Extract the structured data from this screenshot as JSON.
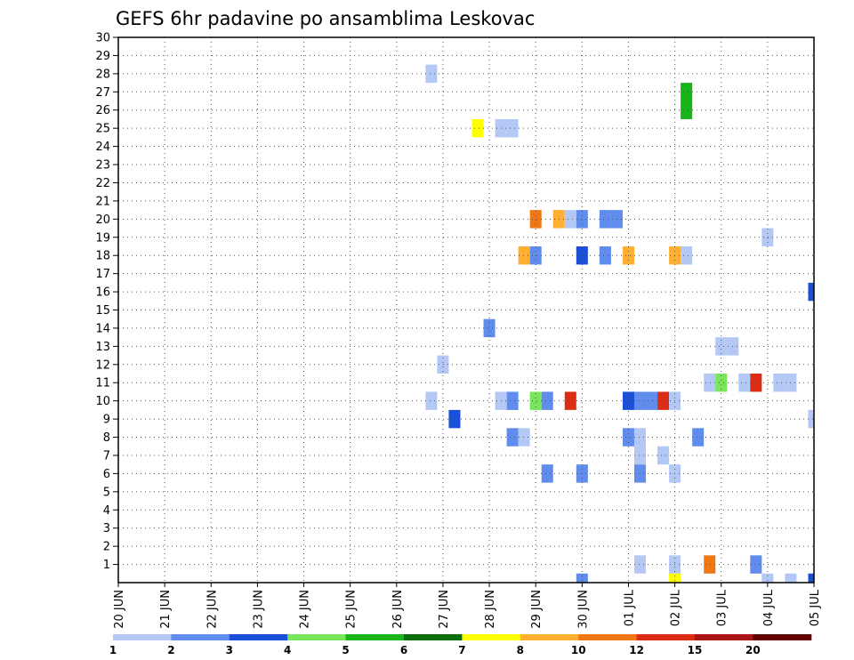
{
  "chart_data": {
    "type": "heatmap",
    "title": "GEFS 6hr padavine po ansamblima Leskovac",
    "x_tick_labels": [
      "20 JUN",
      "21 JUN",
      "22 JUN",
      "23 JUN",
      "24 JUN",
      "25 JUN",
      "26 JUN",
      "27 JUN",
      "28 JUN",
      "29 JUN",
      "30 JUN",
      "01 JUL",
      "02 JUL",
      "03 JUL",
      "04 JUL",
      "05 JUL"
    ],
    "y_tick_labels": [
      "1",
      "2",
      "3",
      "4",
      "5",
      "6",
      "7",
      "8",
      "9",
      "10",
      "11",
      "12",
      "13",
      "14",
      "15",
      "16",
      "17",
      "18",
      "19",
      "20",
      "21",
      "22",
      "23",
      "24",
      "25",
      "26",
      "27",
      "28",
      "29",
      "30"
    ],
    "xlim": [
      "20 JUN 00Z",
      "05 JUL 00Z"
    ],
    "ylim": [
      0,
      30
    ],
    "grid": true,
    "x_unit": "6-hour steps from 20 JUN 00Z",
    "legend": {
      "position": "bottom",
      "labels": [
        "1",
        "2",
        "3",
        "4",
        "5",
        "6",
        "7",
        "8",
        "10",
        "12",
        "15",
        "20"
      ],
      "colors": [
        "#b4c8f5",
        "#5f8ced",
        "#1a4fd9",
        "#78e65a",
        "#19b419",
        "#0a6e0a",
        "#ffff00",
        "#ffaf32",
        "#f07814",
        "#dc2d14",
        "#aa1414",
        "#640000"
      ]
    },
    "cells": [
      {
        "step": 27,
        "member": 28,
        "color": "#b4c8f5"
      },
      {
        "step": 49,
        "member": 27,
        "color": "#19b419"
      },
      {
        "step": 49,
        "member": 26,
        "color": "#19b419"
      },
      {
        "step": 31,
        "member": 25,
        "color": "#ffff00"
      },
      {
        "step": 33,
        "member": 25,
        "color": "#b4c8f5"
      },
      {
        "step": 34,
        "member": 25,
        "color": "#b4c8f5"
      },
      {
        "step": 36,
        "member": 20,
        "color": "#f07814"
      },
      {
        "step": 38,
        "member": 20,
        "color": "#ffaf32"
      },
      {
        "step": 39,
        "member": 20,
        "color": "#b4c8f5"
      },
      {
        "step": 40,
        "member": 20,
        "color": "#5f8ced"
      },
      {
        "step": 42,
        "member": 20,
        "color": "#5f8ced"
      },
      {
        "step": 43,
        "member": 20,
        "color": "#5f8ced"
      },
      {
        "step": 56,
        "member": 19,
        "color": "#b4c8f5"
      },
      {
        "step": 35,
        "member": 18,
        "color": "#ffaf32"
      },
      {
        "step": 36,
        "member": 18,
        "color": "#5f8ced"
      },
      {
        "step": 40,
        "member": 18,
        "color": "#1a4fd9"
      },
      {
        "step": 42,
        "member": 18,
        "color": "#5f8ced"
      },
      {
        "step": 44,
        "member": 18,
        "color": "#ffaf32"
      },
      {
        "step": 48,
        "member": 18,
        "color": "#ffaf32"
      },
      {
        "step": 49,
        "member": 18,
        "color": "#b4c8f5"
      },
      {
        "step": 60,
        "member": 16,
        "color": "#1a4fd9"
      },
      {
        "step": 32,
        "member": 14,
        "color": "#5f8ced"
      },
      {
        "step": 52,
        "member": 13,
        "color": "#b4c8f5"
      },
      {
        "step": 53,
        "member": 13,
        "color": "#b4c8f5"
      },
      {
        "step": 28,
        "member": 12,
        "color": "#b4c8f5"
      },
      {
        "step": 51,
        "member": 11,
        "color": "#b4c8f5"
      },
      {
        "step": 52,
        "member": 11,
        "color": "#78e65a"
      },
      {
        "step": 54,
        "member": 11,
        "color": "#b4c8f5"
      },
      {
        "step": 55,
        "member": 11,
        "color": "#dc2d14"
      },
      {
        "step": 57,
        "member": 11,
        "color": "#b4c8f5"
      },
      {
        "step": 58,
        "member": 11,
        "color": "#b4c8f5"
      },
      {
        "step": 27,
        "member": 10,
        "color": "#b4c8f5"
      },
      {
        "step": 33,
        "member": 10,
        "color": "#b4c8f5"
      },
      {
        "step": 34,
        "member": 10,
        "color": "#5f8ced"
      },
      {
        "step": 36,
        "member": 10,
        "color": "#78e65a"
      },
      {
        "step": 37,
        "member": 10,
        "color": "#5f8ced"
      },
      {
        "step": 39,
        "member": 10,
        "color": "#dc2d14"
      },
      {
        "step": 44,
        "member": 10,
        "color": "#1a4fd9"
      },
      {
        "step": 45,
        "member": 10,
        "color": "#5f8ced"
      },
      {
        "step": 46,
        "member": 10,
        "color": "#5f8ced"
      },
      {
        "step": 47,
        "member": 10,
        "color": "#dc2d14"
      },
      {
        "step": 48,
        "member": 10,
        "color": "#b4c8f5"
      },
      {
        "step": 29,
        "member": 9,
        "color": "#1a4fd9"
      },
      {
        "step": 60,
        "member": 9,
        "color": "#b4c8f5"
      },
      {
        "step": 34,
        "member": 8,
        "color": "#5f8ced"
      },
      {
        "step": 35,
        "member": 8,
        "color": "#b4c8f5"
      },
      {
        "step": 44,
        "member": 8,
        "color": "#5f8ced"
      },
      {
        "step": 45,
        "member": 8,
        "color": "#b4c8f5"
      },
      {
        "step": 50,
        "member": 8,
        "color": "#5f8ced"
      },
      {
        "step": 45,
        "member": 7,
        "color": "#b4c8f5"
      },
      {
        "step": 47,
        "member": 7,
        "color": "#b4c8f5"
      },
      {
        "step": 37,
        "member": 6,
        "color": "#5f8ced"
      },
      {
        "step": 40,
        "member": 6,
        "color": "#5f8ced"
      },
      {
        "step": 45,
        "member": 6,
        "color": "#5f8ced"
      },
      {
        "step": 48,
        "member": 6,
        "color": "#b4c8f5"
      },
      {
        "step": 45,
        "member": 1,
        "color": "#b4c8f5"
      },
      {
        "step": 48,
        "member": 1,
        "color": "#b4c8f5"
      },
      {
        "step": 51,
        "member": 1,
        "color": "#f07814"
      },
      {
        "step": 55,
        "member": 1,
        "color": "#5f8ced"
      },
      {
        "step": 40,
        "member": 0,
        "color": "#5f8ced"
      },
      {
        "step": 48,
        "member": 0,
        "color": "#ffff00"
      },
      {
        "step": 56,
        "member": 0,
        "color": "#b4c8f5"
      },
      {
        "step": 58,
        "member": 0,
        "color": "#b4c8f5"
      },
      {
        "step": 60,
        "member": 0,
        "color": "#1a4fd9"
      }
    ]
  }
}
